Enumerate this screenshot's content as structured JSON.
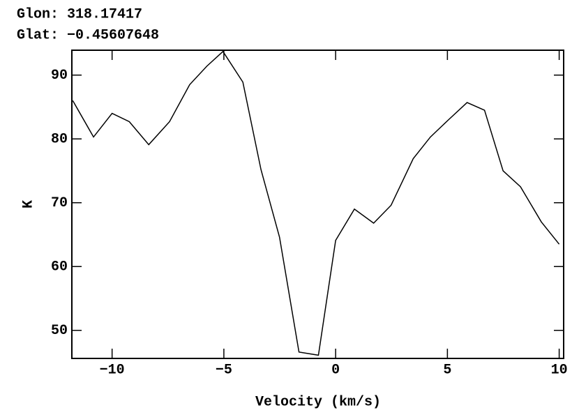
{
  "chart_data": {
    "type": "line",
    "header": [
      "Glon: 318.17417",
      "Glat: −0.45607648"
    ],
    "x_label": "Velocity (km/s)",
    "y_label": "K",
    "x": [
      -11.76,
      -10.83,
      -10.0,
      -9.23,
      -8.36,
      -7.43,
      -6.53,
      -5.76,
      -5.04,
      -4.15,
      -3.34,
      -2.51,
      -1.64,
      -0.77,
      0.0,
      0.84,
      1.7,
      2.48,
      3.47,
      4.24,
      5.05,
      5.88,
      6.66,
      7.49,
      8.27,
      9.2,
      10.0
    ],
    "values": [
      86.0,
      80.3,
      84.0,
      82.7,
      79.1,
      82.7,
      88.5,
      91.4,
      93.7,
      88.9,
      75.2,
      64.6,
      46.6,
      46.1,
      64.1,
      69.0,
      66.8,
      69.6,
      76.9,
      80.3,
      83.0,
      85.7,
      84.5,
      75.0,
      72.5,
      67.0,
      63.5
    ],
    "color": "#000000",
    "xlim": [
      -11.8,
      10.2
    ],
    "ylim": [
      45.6,
      93.9
    ],
    "xticks": [
      {
        "value": -10,
        "label": "−10"
      },
      {
        "value": -5,
        "label": "−5"
      },
      0,
      5,
      10
    ],
    "yticks": [
      50,
      60,
      70,
      80,
      90
    ]
  }
}
